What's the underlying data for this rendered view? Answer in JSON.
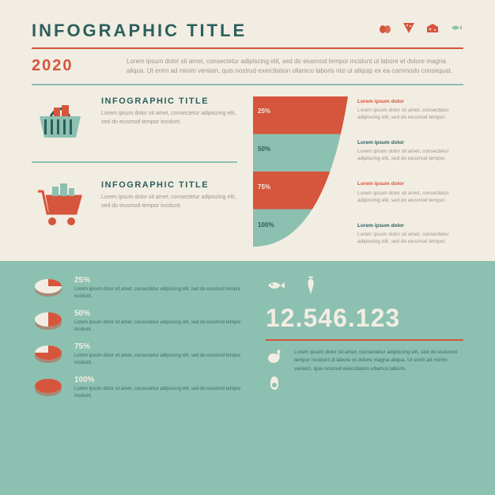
{
  "colors": {
    "background": "#f2ede2",
    "teal_dark": "#2d5f5d",
    "teal_light": "#8cc0b0",
    "red": "#d6553d",
    "cream": "#f2ede2",
    "text_muted": "#9b9688",
    "text_on_teal": "#3d6e6b"
  },
  "header": {
    "title": "INFOGRAPHIC TITLE",
    "title_fontsize": 22,
    "title_color": "#2d5f5d",
    "icons": [
      "eggs",
      "pizza",
      "cheese",
      "fish"
    ],
    "icon_colors": [
      "#d6553d",
      "#d6553d",
      "#d6553d",
      "#8cc0b0"
    ]
  },
  "year_row": {
    "year": "2020",
    "year_color": "#d6553d",
    "text": "Lorem ipsum dolor sit amet, consectetur adipiscing elit, sed do eiusmod tempor incidunt ut labore et dolore magna aliqua. Ut enim ad minim veniam, quis nostrud exercitation ullamco laboris nisi ut aliquip ex ea commodo consequat."
  },
  "blocks": [
    {
      "icon": "basket",
      "title": "INFOGRAPHIC TITLE",
      "body": "Lorem ipsum dolor sit amet, consectetur adipiscing elit, sed do eiusmod tempor incidunt."
    },
    {
      "icon": "cart",
      "title": "INFOGRAPHIC TITLE",
      "body": "Lorem ipsum dolor sit amet, consectetur adipiscing elit, sed do eiusmod tempor incidunt."
    }
  ],
  "funnel": {
    "type": "funnel",
    "width": 120,
    "height": 190,
    "band_height_pct": 25,
    "bands": [
      {
        "label": "25%",
        "color": "#d6553d",
        "text_color": "#f2ede2",
        "title_color": "#d6553d"
      },
      {
        "label": "50%",
        "color": "#8cc0b0",
        "text_color": "#2d5f5d",
        "title_color": "#2d5f5d"
      },
      {
        "label": "75%",
        "color": "#d6553d",
        "text_color": "#f2ede2",
        "title_color": "#d6553d"
      },
      {
        "label": "100%",
        "color": "#8cc0b0",
        "text_color": "#2d5f5d",
        "title_color": "#2d5f5d"
      }
    ],
    "item_title": "Lorem ipsum dolor",
    "item_body": "Lorem ipsum dolor sit amet, consectetur adipiscing elit, sed do eiusmod tempor."
  },
  "bottom": {
    "background": "#8cc0b0",
    "pies": {
      "type": "pie_3d",
      "rows": [
        {
          "pct": "25%",
          "value": 25,
          "slice_color": "#d6553d",
          "rest_color": "#f2ede2"
        },
        {
          "pct": "50%",
          "value": 50,
          "slice_color": "#d6553d",
          "rest_color": "#f2ede2"
        },
        {
          "pct": "75%",
          "value": 75,
          "slice_color": "#d6553d",
          "rest_color": "#f2ede2"
        },
        {
          "pct": "100%",
          "value": 100,
          "slice_color": "#d6553d",
          "rest_color": "#f2ede2"
        }
      ],
      "body": "Lorem ipsum dolor sit amet, consectetur adipiscing elit, sed do eiusmod tempor incidunt."
    },
    "big_number": "12.546.123",
    "big_number_color": "#f2ede2",
    "big_number_fontsize": 32,
    "food_icons_top": [
      "fish",
      "carrot"
    ],
    "food_icons_side": [
      "meat",
      "avocado"
    ],
    "big_text": "Lorem ipsum dolor sit amet, consectetur adipiscing elit, sed do eiusmod tempor incidunt ut labore et dolore magna aliqua. Ut enim ad minim veniam, quis nostrud exercitation ullamco laboris."
  }
}
